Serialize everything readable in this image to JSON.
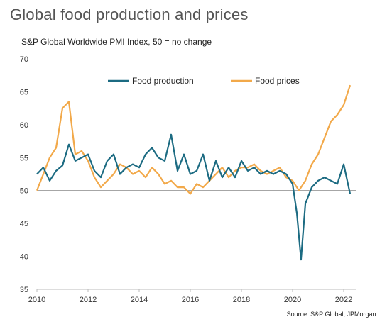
{
  "title": "Global food production and prices",
  "subtitle": "S&P Global Worldwide PMI Index, 50 =  no change",
  "source": "Source: S&P Global, JPMorgan.",
  "colors": {
    "production": "#1c6b82",
    "prices": "#f2a94a",
    "baseline": "#9a9a9a",
    "axis": "#bbbbbb"
  },
  "chart_data": {
    "type": "line",
    "title": "Global food production and prices",
    "ylim": [
      35,
      70
    ],
    "xlim": [
      2010,
      2022.5
    ],
    "y_ticks": [
      "35",
      "40",
      "45",
      "50",
      "55",
      "60",
      "65",
      "70"
    ],
    "x_ticks": [
      "2010",
      "2012",
      "2014",
      "2016",
      "2018",
      "2020",
      "2022"
    ],
    "reference_line": 50,
    "legend_position": "top-center",
    "series": [
      {
        "name": "Food production",
        "x": [
          2010.0,
          2010.25,
          2010.5,
          2010.75,
          2011.0,
          2011.25,
          2011.5,
          2011.75,
          2012.0,
          2012.25,
          2012.5,
          2012.75,
          2013.0,
          2013.25,
          2013.5,
          2013.75,
          2014.0,
          2014.25,
          2014.5,
          2014.75,
          2015.0,
          2015.25,
          2015.5,
          2015.75,
          2016.0,
          2016.25,
          2016.5,
          2016.75,
          2017.0,
          2017.25,
          2017.5,
          2017.75,
          2018.0,
          2018.25,
          2018.5,
          2018.75,
          2019.0,
          2019.25,
          2019.5,
          2019.75,
          2020.0,
          2020.17,
          2020.33,
          2020.5,
          2020.75,
          2021.0,
          2021.25,
          2021.5,
          2021.75,
          2022.0,
          2022.25
        ],
        "values": [
          52.5,
          53.5,
          51.5,
          53.0,
          53.8,
          57.0,
          54.5,
          55.0,
          55.5,
          53.0,
          52.0,
          54.5,
          55.5,
          52.5,
          53.5,
          54.0,
          53.5,
          55.5,
          56.5,
          55.0,
          54.5,
          58.5,
          53.0,
          55.5,
          52.5,
          53.0,
          55.5,
          51.5,
          54.5,
          52.0,
          53.5,
          52.0,
          54.5,
          53.0,
          53.5,
          52.5,
          53.0,
          52.5,
          53.0,
          52.5,
          51.0,
          46.5,
          39.5,
          48.0,
          50.5,
          51.5,
          52.0,
          51.5,
          51.0,
          54.0,
          49.5
        ]
      },
      {
        "name": "Food prices",
        "x": [
          2010.0,
          2010.25,
          2010.5,
          2010.75,
          2011.0,
          2011.25,
          2011.5,
          2011.75,
          2012.0,
          2012.25,
          2012.5,
          2012.75,
          2013.0,
          2013.25,
          2013.5,
          2013.75,
          2014.0,
          2014.25,
          2014.5,
          2014.75,
          2015.0,
          2015.25,
          2015.5,
          2015.75,
          2016.0,
          2016.25,
          2016.5,
          2016.75,
          2017.0,
          2017.25,
          2017.5,
          2017.75,
          2018.0,
          2018.25,
          2018.5,
          2018.75,
          2019.0,
          2019.25,
          2019.5,
          2019.75,
          2020.0,
          2020.25,
          2020.5,
          2020.75,
          2021.0,
          2021.25,
          2021.5,
          2021.75,
          2022.0,
          2022.25
        ],
        "values": [
          50.0,
          52.5,
          55.0,
          56.5,
          62.5,
          63.5,
          55.5,
          56.0,
          54.5,
          52.0,
          50.5,
          51.5,
          52.5,
          54.0,
          53.5,
          52.5,
          53.0,
          52.0,
          53.5,
          52.5,
          51.0,
          51.5,
          50.5,
          50.5,
          49.5,
          51.0,
          50.5,
          51.5,
          52.5,
          53.5,
          52.0,
          53.0,
          53.5,
          53.5,
          54.0,
          53.0,
          52.5,
          53.0,
          53.5,
          52.0,
          51.5,
          50.0,
          51.5,
          54.0,
          55.5,
          58.0,
          60.5,
          61.5,
          63.0,
          66.0
        ]
      }
    ]
  }
}
